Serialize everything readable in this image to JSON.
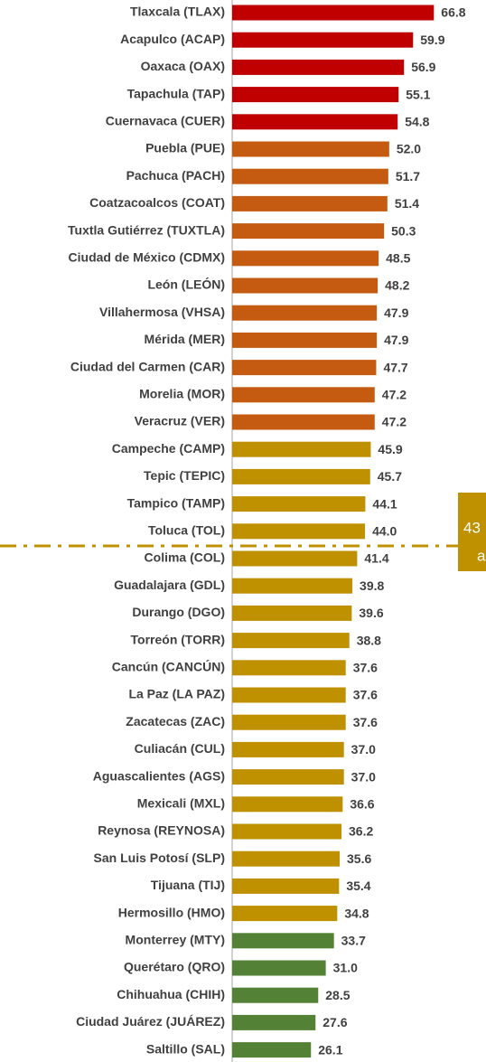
{
  "chart_data": {
    "type": "barh",
    "categories": [
      "Tlaxcala (TLAX)",
      "Acapulco (ACAP)",
      "Oaxaca (OAX)",
      "Tapachula (TAP)",
      "Cuernavaca (CUER)",
      "Puebla (PUE)",
      "Pachuca (PACH)",
      "Coatzacoalcos (COAT)",
      "Tuxtla Gutiérrez (TUXTLA)",
      "Ciudad de México (CDMX)",
      "León (LEÓN)",
      "Villahermosa (VHSA)",
      "Mérida (MER)",
      "Ciudad del Carmen (CAR)",
      "Morelia (MOR)",
      "Veracruz (VER)",
      "Campeche (CAMP)",
      "Tepic (TEPIC)",
      "Tampico (TAMP)",
      "Toluca (TOL)",
      "Colima (COL)",
      "Guadalajara (GDL)",
      "Durango (DGO)",
      "Torreón (TORR)",
      "Cancún (CANCÚN)",
      "La Paz (LA PAZ)",
      "Zacatecas (ZAC)",
      "Culiacán (CUL)",
      "Aguascalientes (AGS)",
      "Mexicali (MXL)",
      "Reynosa (REYNOSA)",
      "San Luis Potosí (SLP)",
      "Tijuana (TIJ)",
      "Hermosillo (HMO)",
      "Monterrey (MTY)",
      "Querétaro (QRO)",
      "Chihuahua (CHIH)",
      "Ciudad Juárez (JUÁREZ)",
      "Saltillo (SAL)"
    ],
    "values": [
      66.8,
      59.9,
      56.9,
      55.1,
      54.8,
      52.0,
      51.7,
      51.4,
      50.3,
      48.5,
      48.2,
      47.9,
      47.9,
      47.7,
      47.2,
      47.2,
      45.9,
      45.7,
      44.1,
      44.0,
      41.4,
      39.8,
      39.6,
      38.8,
      37.6,
      37.6,
      37.6,
      37.0,
      37.0,
      36.6,
      36.2,
      35.6,
      35.4,
      34.8,
      33.7,
      31.0,
      28.5,
      27.6,
      26.1
    ],
    "value_labels": [
      "66.8",
      "59.9",
      "56.9",
      "55.1",
      "54.8",
      "52.0",
      "51.7",
      "51.4",
      "50.3",
      "48.5",
      "48.2",
      "47.9",
      "47.9",
      "47.7",
      "47.2",
      "47.2",
      "45.9",
      "45.7",
      "44.1",
      "44.0",
      "41.4",
      "39.8",
      "39.6",
      "38.8",
      "37.6",
      "37.6",
      "37.6",
      "37.0",
      "37.0",
      "36.6",
      "36.2",
      "35.6",
      "35.4",
      "34.8",
      "33.7",
      "31.0",
      "28.5",
      "27.6",
      "26.1"
    ],
    "colors": [
      "#c00000",
      "#c00000",
      "#c00000",
      "#c00000",
      "#c00000",
      "#c55a11",
      "#c55a11",
      "#c55a11",
      "#c55a11",
      "#c55a11",
      "#c55a11",
      "#c55a11",
      "#c55a11",
      "#c55a11",
      "#c55a11",
      "#c55a11",
      "#bf9000",
      "#bf9000",
      "#bf9000",
      "#bf9000",
      "#bf9000",
      "#bf9000",
      "#bf9000",
      "#bf9000",
      "#bf9000",
      "#bf9000",
      "#bf9000",
      "#bf9000",
      "#bf9000",
      "#bf9000",
      "#bf9000",
      "#bf9000",
      "#bf9000",
      "#bf9000",
      "#538135",
      "#538135",
      "#538135",
      "#538135",
      "#538135"
    ],
    "xlim": [
      0,
      70
    ],
    "annotation": [
      "43",
      "a"
    ]
  }
}
